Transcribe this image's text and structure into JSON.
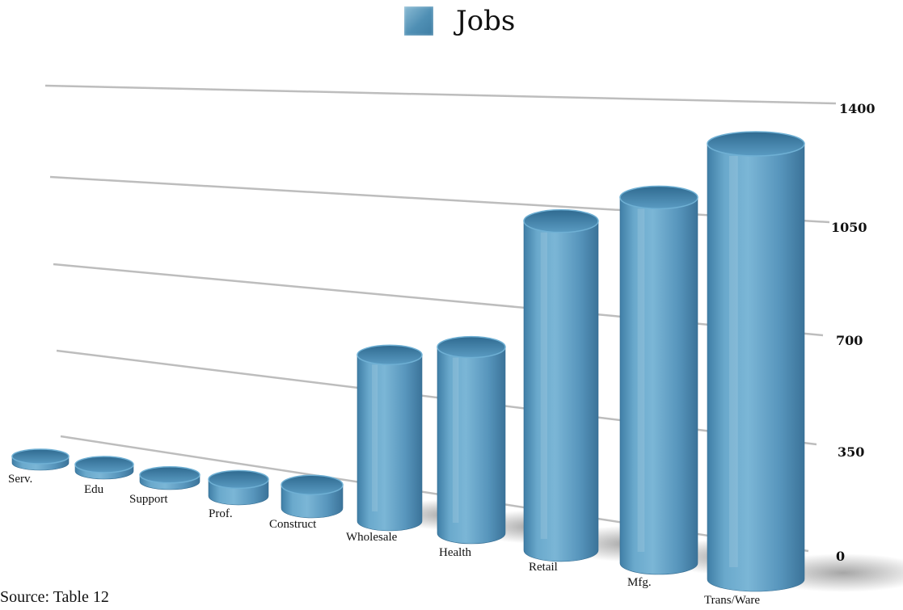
{
  "chart_data": {
    "type": "bar",
    "style": "3d-cylinder",
    "title": "",
    "xlabel": "",
    "ylabel": "",
    "categories": [
      "Serv.",
      "Edu",
      "Support",
      "Prof.",
      "Construct",
      "Wholesale",
      "Health",
      "Retail",
      "Mfg.",
      "Trans/Ware"
    ],
    "series": [
      {
        "name": "Jobs",
        "values": [
          10,
          15,
          20,
          50,
          70,
          500,
          560,
          990,
          1100,
          1310
        ],
        "color": "#5b9cc2"
      }
    ],
    "ylim": [
      0,
      1400
    ],
    "yticks": [
      "0",
      "350",
      "700",
      "1050",
      "1400"
    ],
    "grid": true,
    "legend_position": "top-center",
    "axis_position": "right"
  },
  "source_note": "Source: Table 12"
}
